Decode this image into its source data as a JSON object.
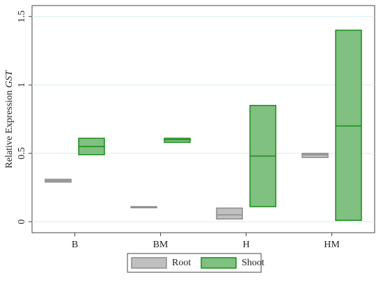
{
  "chart_data": {
    "type": "box",
    "ylabel": "Relative Expression",
    "ylabel_italic": "GST",
    "categories": [
      "B",
      "BM",
      "H",
      "HM"
    ],
    "series": [
      {
        "name": "Root",
        "color": "#c0c0c0",
        "edge": "#8c8c8c",
        "values": [
          0.3,
          0.11,
          0.05,
          0.49
        ],
        "low": [
          0.29,
          0.11,
          0.02,
          0.47
        ],
        "high": [
          0.31,
          0.11,
          0.1,
          0.5
        ]
      },
      {
        "name": "Shoot",
        "color": "#80c080",
        "edge": "#1a8a1a",
        "values": [
          0.55,
          0.6,
          0.48,
          0.7
        ],
        "low": [
          0.49,
          0.58,
          0.11,
          0.01
        ],
        "high": [
          0.61,
          0.61,
          0.85,
          1.4
        ]
      }
    ],
    "ylim": [
      -0.08,
      1.58
    ],
    "yticks": [
      0,
      {
        "value": 0.5,
        "label": "0.5"
      },
      1,
      1.5
    ],
    "grid": true,
    "legend": "bottom"
  }
}
